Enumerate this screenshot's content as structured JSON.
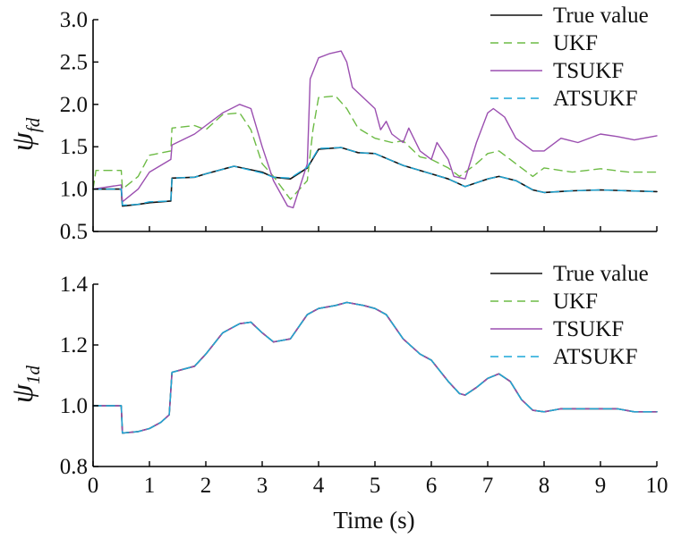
{
  "colors": {
    "True value": "#111111",
    "UKF": "#6dbb45",
    "TSUKF": "#9b4fb0",
    "ATSUKF": "#1ba7d8"
  },
  "dashed_series": [
    "UKF",
    "ATSUKF"
  ],
  "chart_data": [
    {
      "type": "line",
      "title": "",
      "xlabel": "",
      "ylabel_symbol": "ψ",
      "ylabel_subscript": "fd",
      "xlim": [
        0,
        10
      ],
      "ylim": [
        0.5,
        3.0
      ],
      "xticks": [
        "0",
        "1",
        "2",
        "3",
        "4",
        "5",
        "6",
        "7",
        "8",
        "9",
        "10"
      ],
      "yticks": [
        "0.5",
        "1.0",
        "1.5",
        "2.0",
        "2.5",
        "3.0"
      ],
      "legend_position": "top-right",
      "series": [
        {
          "name": "True value",
          "x": [
            0,
            0.5,
            0.52,
            0.8,
            1.0,
            1.38,
            1.4,
            1.8,
            2.0,
            2.5,
            3.0,
            3.2,
            3.5,
            3.8,
            4.0,
            4.4,
            4.7,
            5.0,
            5.5,
            6.0,
            6.3,
            6.6,
            7.0,
            7.2,
            7.5,
            7.8,
            8.0,
            8.5,
            9.0,
            9.5,
            10.0
          ],
          "y": [
            1.0,
            1.0,
            0.8,
            0.82,
            0.84,
            0.86,
            1.13,
            1.14,
            1.18,
            1.27,
            1.2,
            1.14,
            1.12,
            1.25,
            1.47,
            1.49,
            1.43,
            1.42,
            1.28,
            1.18,
            1.12,
            1.03,
            1.12,
            1.15,
            1.1,
            0.99,
            0.96,
            0.98,
            0.99,
            0.98,
            0.97
          ]
        },
        {
          "name": "UKF",
          "x": [
            0,
            0.05,
            0.5,
            0.52,
            0.8,
            1.0,
            1.38,
            1.4,
            1.8,
            2.0,
            2.3,
            2.6,
            2.8,
            3.0,
            3.2,
            3.5,
            3.8,
            3.9,
            4.0,
            4.3,
            4.5,
            4.7,
            5.0,
            5.3,
            5.5,
            5.8,
            6.0,
            6.3,
            6.5,
            6.8,
            7.0,
            7.2,
            7.5,
            7.8,
            8.0,
            8.5,
            9.0,
            9.5,
            10.0
          ],
          "y": [
            1.0,
            1.22,
            1.22,
            1.0,
            1.15,
            1.4,
            1.45,
            1.72,
            1.75,
            1.7,
            1.88,
            1.9,
            1.7,
            1.3,
            1.15,
            0.88,
            1.1,
            1.7,
            2.08,
            2.1,
            1.95,
            1.72,
            1.6,
            1.55,
            1.57,
            1.38,
            1.35,
            1.25,
            1.15,
            1.3,
            1.42,
            1.45,
            1.3,
            1.15,
            1.25,
            1.2,
            1.24,
            1.2,
            1.2
          ]
        },
        {
          "name": "TSUKF",
          "x": [
            0,
            0.5,
            0.52,
            0.8,
            1.0,
            1.38,
            1.4,
            1.8,
            2.0,
            2.3,
            2.6,
            2.8,
            3.0,
            3.2,
            3.45,
            3.55,
            3.8,
            3.85,
            4.0,
            4.2,
            4.4,
            4.5,
            4.6,
            5.0,
            5.1,
            5.2,
            5.3,
            5.5,
            5.6,
            5.8,
            6.0,
            6.1,
            6.3,
            6.4,
            6.6,
            6.8,
            7.0,
            7.1,
            7.3,
            7.5,
            7.8,
            8.0,
            8.3,
            8.6,
            9.0,
            9.3,
            9.6,
            10.0
          ],
          "y": [
            1.0,
            1.05,
            0.85,
            1.0,
            1.2,
            1.35,
            1.52,
            1.65,
            1.75,
            1.9,
            2.0,
            1.95,
            1.5,
            1.1,
            0.8,
            0.78,
            1.3,
            2.3,
            2.55,
            2.6,
            2.63,
            2.5,
            2.2,
            1.95,
            1.7,
            1.8,
            1.65,
            1.55,
            1.72,
            1.45,
            1.35,
            1.55,
            1.35,
            1.15,
            1.12,
            1.55,
            1.9,
            1.95,
            1.85,
            1.6,
            1.45,
            1.45,
            1.6,
            1.55,
            1.65,
            1.62,
            1.58,
            1.63
          ]
        },
        {
          "name": "ATSUKF",
          "x": [
            0,
            0.5,
            0.52,
            0.8,
            1.0,
            1.38,
            1.4,
            1.8,
            2.0,
            2.5,
            3.0,
            3.2,
            3.5,
            3.8,
            4.0,
            4.4,
            4.7,
            5.0,
            5.5,
            6.0,
            6.3,
            6.6,
            7.0,
            7.2,
            7.5,
            7.8,
            8.0,
            8.5,
            9.0,
            9.5,
            10.0
          ],
          "y": [
            1.0,
            1.0,
            0.81,
            0.82,
            0.85,
            0.86,
            1.13,
            1.14,
            1.18,
            1.27,
            1.19,
            1.14,
            1.13,
            1.26,
            1.48,
            1.49,
            1.43,
            1.42,
            1.28,
            1.18,
            1.12,
            1.03,
            1.12,
            1.15,
            1.1,
            0.99,
            0.96,
            0.98,
            0.99,
            0.98,
            0.97
          ]
        }
      ]
    },
    {
      "type": "line",
      "title": "",
      "xlabel": "Time (s)",
      "ylabel_symbol": "ψ",
      "ylabel_subscript": "1d",
      "xlim": [
        0,
        10
      ],
      "ylim": [
        0.8,
        1.4
      ],
      "xticks": [
        "0",
        "1",
        "2",
        "3",
        "4",
        "5",
        "6",
        "7",
        "8",
        "9",
        "10"
      ],
      "yticks": [
        "0.8",
        "1.0",
        "1.2",
        "1.4"
      ],
      "legend_position": "top-right",
      "series": [
        {
          "name": "True value",
          "x": [
            0,
            0.5,
            0.52,
            0.8,
            1.0,
            1.2,
            1.35,
            1.4,
            1.6,
            1.8,
            2.0,
            2.3,
            2.6,
            2.8,
            3.0,
            3.2,
            3.5,
            3.8,
            4.0,
            4.3,
            4.5,
            4.8,
            5.0,
            5.2,
            5.5,
            5.8,
            6.0,
            6.3,
            6.5,
            6.6,
            6.8,
            7.0,
            7.2,
            7.4,
            7.6,
            7.8,
            8.0,
            8.3,
            8.6,
            9.0,
            9.3,
            9.6,
            10.0
          ],
          "y": [
            1.0,
            1.0,
            0.91,
            0.915,
            0.925,
            0.945,
            0.97,
            1.11,
            1.12,
            1.13,
            1.17,
            1.24,
            1.27,
            1.275,
            1.24,
            1.21,
            1.22,
            1.3,
            1.32,
            1.33,
            1.34,
            1.33,
            1.32,
            1.3,
            1.22,
            1.17,
            1.15,
            1.08,
            1.04,
            1.035,
            1.06,
            1.09,
            1.105,
            1.08,
            1.02,
            0.985,
            0.98,
            0.99,
            0.99,
            0.99,
            0.99,
            0.98,
            0.98
          ]
        },
        {
          "name": "UKF",
          "x": [
            0,
            0.5,
            0.52,
            0.8,
            1.0,
            1.2,
            1.35,
            1.4,
            1.6,
            1.8,
            2.0,
            2.3,
            2.6,
            2.8,
            3.0,
            3.2,
            3.5,
            3.8,
            4.0,
            4.3,
            4.5,
            4.8,
            5.0,
            5.2,
            5.5,
            5.8,
            6.0,
            6.3,
            6.5,
            6.6,
            6.8,
            7.0,
            7.2,
            7.4,
            7.6,
            7.8,
            8.0,
            8.3,
            8.6,
            9.0,
            9.3,
            9.6,
            10.0
          ],
          "y": [
            1.0,
            1.0,
            0.91,
            0.915,
            0.925,
            0.945,
            0.97,
            1.11,
            1.12,
            1.13,
            1.17,
            1.24,
            1.27,
            1.275,
            1.24,
            1.21,
            1.22,
            1.3,
            1.32,
            1.33,
            1.34,
            1.33,
            1.32,
            1.3,
            1.22,
            1.17,
            1.15,
            1.08,
            1.04,
            1.035,
            1.06,
            1.09,
            1.105,
            1.08,
            1.02,
            0.985,
            0.98,
            0.99,
            0.99,
            0.99,
            0.99,
            0.98,
            0.98
          ]
        },
        {
          "name": "TSUKF",
          "x": [
            0,
            0.5,
            0.52,
            0.8,
            1.0,
            1.2,
            1.35,
            1.4,
            1.6,
            1.8,
            2.0,
            2.3,
            2.6,
            2.8,
            3.0,
            3.2,
            3.5,
            3.8,
            4.0,
            4.3,
            4.5,
            4.8,
            5.0,
            5.2,
            5.5,
            5.8,
            6.0,
            6.3,
            6.5,
            6.6,
            6.8,
            7.0,
            7.2,
            7.4,
            7.6,
            7.8,
            8.0,
            8.3,
            8.6,
            9.0,
            9.3,
            9.6,
            10.0
          ],
          "y": [
            1.0,
            1.0,
            0.91,
            0.915,
            0.925,
            0.945,
            0.97,
            1.11,
            1.12,
            1.13,
            1.17,
            1.24,
            1.27,
            1.275,
            1.24,
            1.21,
            1.22,
            1.3,
            1.32,
            1.33,
            1.34,
            1.33,
            1.32,
            1.3,
            1.22,
            1.17,
            1.15,
            1.08,
            1.04,
            1.035,
            1.06,
            1.09,
            1.105,
            1.08,
            1.02,
            0.985,
            0.98,
            0.99,
            0.99,
            0.99,
            0.99,
            0.98,
            0.98
          ]
        },
        {
          "name": "ATSUKF",
          "x": [
            0,
            0.5,
            0.52,
            0.8,
            1.0,
            1.2,
            1.35,
            1.4,
            1.6,
            1.8,
            2.0,
            2.3,
            2.6,
            2.8,
            3.0,
            3.2,
            3.5,
            3.8,
            4.0,
            4.3,
            4.5,
            4.8,
            5.0,
            5.2,
            5.5,
            5.8,
            6.0,
            6.3,
            6.5,
            6.6,
            6.8,
            7.0,
            7.2,
            7.4,
            7.6,
            7.8,
            8.0,
            8.3,
            8.6,
            9.0,
            9.3,
            9.6,
            10.0
          ],
          "y": [
            1.0,
            1.0,
            0.91,
            0.915,
            0.925,
            0.945,
            0.97,
            1.11,
            1.12,
            1.13,
            1.17,
            1.24,
            1.27,
            1.275,
            1.24,
            1.21,
            1.22,
            1.3,
            1.32,
            1.33,
            1.34,
            1.33,
            1.32,
            1.3,
            1.22,
            1.17,
            1.15,
            1.08,
            1.04,
            1.035,
            1.06,
            1.09,
            1.105,
            1.08,
            1.02,
            0.985,
            0.98,
            0.99,
            0.99,
            0.99,
            0.99,
            0.98,
            0.98
          ]
        }
      ]
    }
  ]
}
